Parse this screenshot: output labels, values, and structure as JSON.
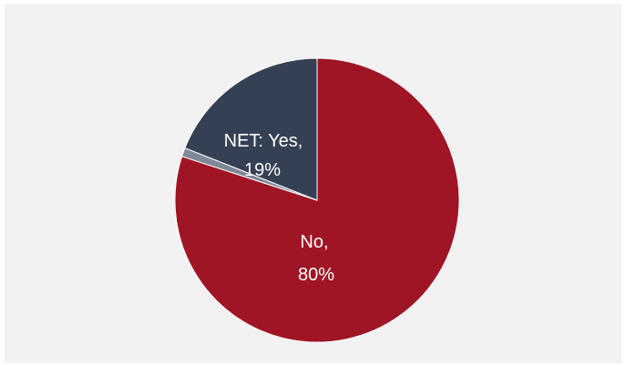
{
  "chart_data": {
    "type": "pie",
    "slices": [
      {
        "label": "No",
        "value": 80,
        "display": "80%",
        "color": "#a01525"
      },
      {
        "label": "",
        "value": 1,
        "display": "",
        "color": "#7f8896"
      },
      {
        "label": "NET: Yes",
        "value": 19,
        "display": "19%",
        "color": "#344154"
      }
    ],
    "start": "12 o'clock",
    "direction": "clockwise"
  }
}
